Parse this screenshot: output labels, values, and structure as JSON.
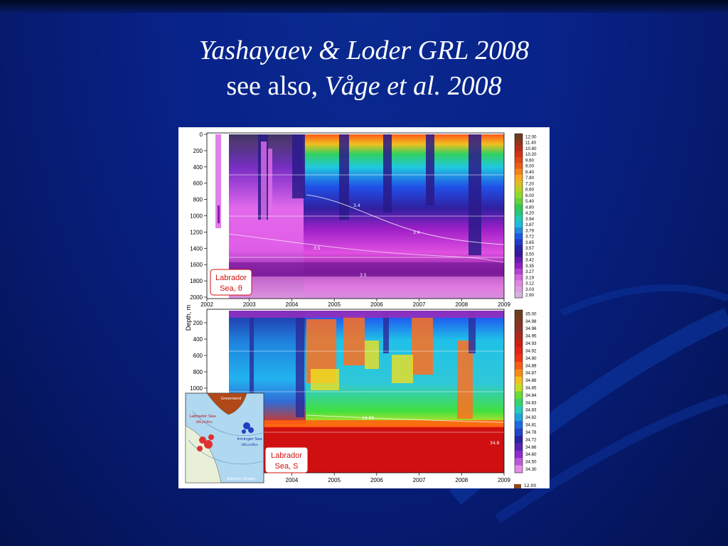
{
  "slide": {
    "title_line1": "Yashayaev & Loder GRL 2008",
    "title_line2_prefix": "see also",
    "title_line2_comma": ",",
    "title_line2_ref": "Våge et al. 2008"
  },
  "colors": {
    "background": "#08238a",
    "title_text": "#ffffff",
    "figure_background": "#ffffff",
    "label_text": "#d01010"
  },
  "chart_data": [
    {
      "type": "heatmap",
      "panel_label_line1": "Labrador",
      "panel_label_line2": "Sea, θ",
      "ylabel": "Depth, m",
      "x_ticks": [
        "2002",
        "2003",
        "2004",
        "2005",
        "2006",
        "2007",
        "2008",
        "2009"
      ],
      "xlim": [
        2002,
        2009
      ],
      "y_ticks": [
        "0",
        "200",
        "400",
        "600",
        "800",
        "1000",
        "1200",
        "1400",
        "1600",
        "1800",
        "2000"
      ],
      "ylim": [
        0,
        2000
      ],
      "colorbar_labels": [
        "12.00",
        "11.40",
        "10.80",
        "10.20",
        "9.60",
        "9.00",
        "8.40",
        "7.80",
        "7.20",
        "6.60",
        "6.00",
        "5.40",
        "4.80",
        "4.20",
        "3.94",
        "3.87",
        "3.79",
        "3.72",
        "3.65",
        "3.57",
        "3.50",
        "3.42",
        "3.35",
        "3.27",
        "3.19",
        "3.12",
        "3.03",
        "2.90"
      ],
      "contour_labels": [
        "3.5",
        "3.5",
        "3.4",
        "3.4"
      ]
    },
    {
      "type": "heatmap",
      "panel_label_line1": "Labrador",
      "panel_label_line2": "Sea, S",
      "x_ticks": [
        "2004",
        "2005",
        "2006",
        "2007",
        "2008",
        "2009"
      ],
      "y_ticks": [
        "200",
        "400",
        "600",
        "800",
        "1000"
      ],
      "ylim": [
        0,
        1000
      ],
      "colorbar_labels": [
        "35.00",
        "34.98",
        "34.96",
        "34.95",
        "34.93",
        "34.92",
        "34.90",
        "34.89",
        "34.87",
        "34.86",
        "34.85",
        "34.84",
        "34.83",
        "34.83",
        "34.82",
        "34.81",
        "34.78",
        "34.72",
        "34.66",
        "34.60",
        "34.50",
        "34.30"
      ],
      "contour_labels": [
        "34.88",
        "34.8"
      ]
    }
  ],
  "inset_map": {
    "label_greenland": "Greenland",
    "label_labrador_sea": "Labrador Sea",
    "label_labrador_profiles": "398 profiles",
    "label_irminger_sea": "Irminger Sea",
    "label_irminger_profiles": "268 profiles",
    "label_atlantic": "Atlantic Ocean"
  },
  "third_panel_colorbar_top": "12.00"
}
